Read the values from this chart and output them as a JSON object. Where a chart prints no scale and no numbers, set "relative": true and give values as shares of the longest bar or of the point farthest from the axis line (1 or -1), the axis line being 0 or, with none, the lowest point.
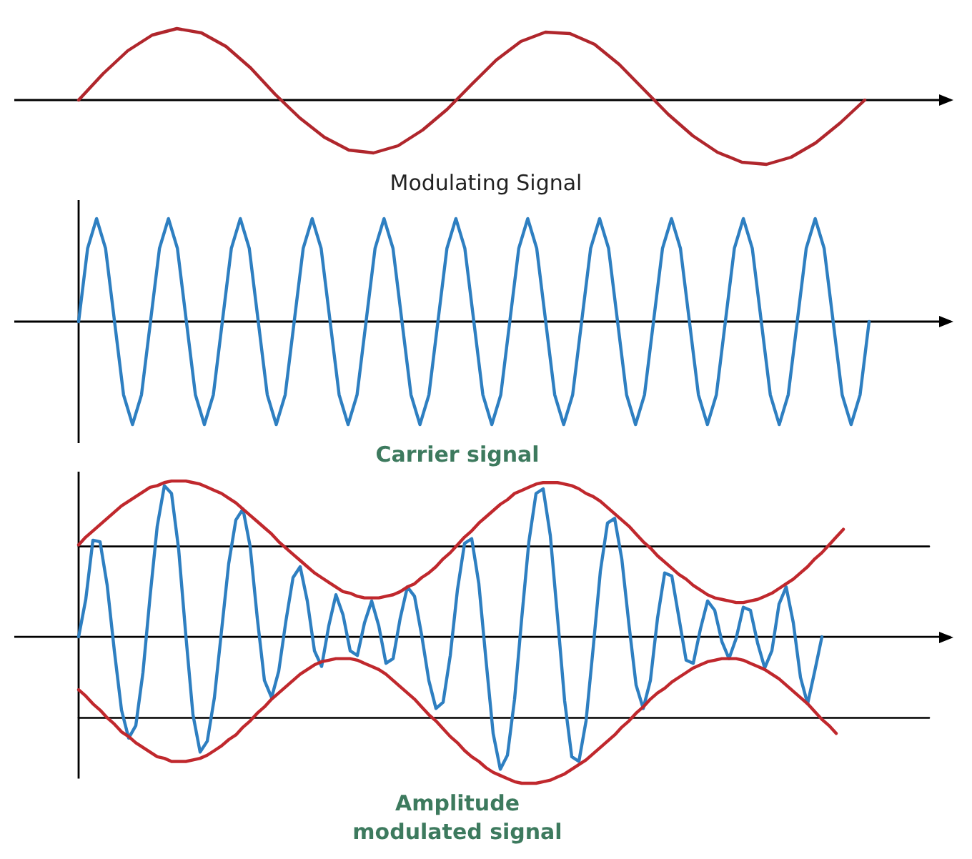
{
  "chart_data": [
    {
      "type": "line",
      "title": "Modulating Signal",
      "relative": true,
      "categories": [
        null,
        null,
        null,
        null,
        null,
        null,
        null,
        null,
        null,
        null,
        null,
        null,
        null,
        null,
        null,
        null,
        null,
        null,
        null,
        null,
        null,
        null,
        null,
        null,
        null,
        null,
        null,
        null,
        null,
        null,
        null,
        null,
        null
      ],
      "series": [
        {
          "color": "#b0262c",
          "values": [
            0,
            0.37,
            0.69,
            0.91,
            1,
            0.94,
            0.75,
            0.45,
            0.08,
            -0.25,
            -0.52,
            -0.7,
            -0.74,
            -0.64,
            -0.42,
            -0.13,
            0.22,
            0.56,
            0.82,
            0.95,
            0.93,
            0.78,
            0.5,
            0.15,
            -0.2,
            -0.5,
            -0.73,
            -0.87,
            -0.9,
            -0.8,
            -0.6,
            -0.32,
            0
          ]
        }
      ]
    },
    {
      "type": "line",
      "title": "Carrier signal",
      "relative": true,
      "categories": [
        null,
        null,
        null,
        null,
        null,
        null,
        null,
        null,
        null,
        null,
        null,
        null,
        null,
        null,
        null,
        null,
        null,
        null,
        null,
        null,
        null,
        null,
        null,
        null,
        null,
        null,
        null,
        null,
        null,
        null,
        null,
        null,
        null,
        null,
        null,
        null,
        null,
        null,
        null,
        null,
        null,
        null,
        null,
        null,
        null,
        null,
        null,
        null,
        null,
        null,
        null,
        null,
        null,
        null,
        null,
        null,
        null,
        null,
        null,
        null,
        null,
        null,
        null,
        null,
        null,
        null,
        null,
        null,
        null,
        null,
        null,
        null,
        null,
        null,
        null,
        null,
        null,
        null,
        null,
        null,
        null,
        null,
        null,
        null,
        null,
        null,
        null,
        null,
        null
      ],
      "series": [
        {
          "color": "#2e7fc1",
          "values": [
            0,
            0.71,
            1,
            0.71,
            0,
            -0.71,
            -1,
            -0.71,
            0,
            0.71,
            1,
            0.71,
            0,
            -0.71,
            -1,
            -0.71,
            0,
            0.71,
            1,
            0.71,
            0,
            -0.71,
            -1,
            -0.71,
            0,
            0.71,
            1,
            0.71,
            0,
            -0.71,
            -1,
            -0.71,
            0,
            0.71,
            1,
            0.71,
            0,
            -0.71,
            -1,
            -0.71,
            0,
            0.71,
            1,
            0.71,
            0,
            -0.71,
            -1,
            -0.71,
            0,
            0.71,
            1,
            0.71,
            0,
            -0.71,
            -1,
            -0.71,
            0,
            0.71,
            1,
            0.71,
            0,
            -0.71,
            -1,
            -0.71,
            0,
            0.71,
            1,
            0.71,
            0,
            -0.71,
            -1,
            -0.71,
            0,
            0.71,
            1,
            0.71,
            0,
            -0.71,
            -1,
            -0.71,
            0,
            0.71,
            1,
            0.71,
            0,
            -0.71,
            -1,
            -0.71,
            0
          ]
        }
      ]
    },
    {
      "type": "line",
      "title": "Amplitude modulated signal",
      "relative": true,
      "categories": [
        null,
        null,
        null,
        null,
        null,
        null,
        null,
        null,
        null,
        null,
        null,
        null,
        null,
        null,
        null,
        null,
        null,
        null,
        null,
        null,
        null,
        null,
        null,
        null,
        null,
        null,
        null,
        null,
        null,
        null,
        null,
        null,
        null,
        null,
        null,
        null,
        null,
        null,
        null,
        null,
        null,
        null,
        null,
        null,
        null,
        null,
        null,
        null,
        null,
        null,
        null,
        null,
        null,
        null,
        null,
        null,
        null,
        null,
        null,
        null,
        null,
        null,
        null,
        null,
        null,
        null,
        null,
        null,
        null,
        null,
        null,
        null,
        null,
        null,
        null,
        null,
        null,
        null,
        null,
        null,
        null,
        null,
        null,
        null,
        null,
        null,
        null,
        null,
        null,
        null,
        null,
        null,
        null,
        null,
        null,
        null,
        null,
        null,
        null,
        null,
        null,
        null,
        null,
        null,
        null,
        null,
        null,
        null,
        null,
        null,
        null,
        null,
        null,
        null,
        null,
        null,
        null,
        null,
        null,
        null,
        null
      ],
      "series": [
        {
          "color": "#000000",
          "values": [
            0.58,
            0.58,
            0.58,
            0.58,
            0.58,
            0.58,
            0.58,
            0.58,
            0.58,
            0.58,
            0.58,
            0.58,
            0.58,
            0.58,
            0.58,
            0.58,
            0.58,
            0.58,
            0.58,
            0.58,
            0.58,
            0.58,
            0.58,
            0.58,
            0.58,
            0.58,
            0.58,
            0.58,
            0.58,
            0.58,
            0.58,
            0.58,
            0.58,
            0.58,
            0.58,
            0.58,
            0.58,
            0.58,
            0.58,
            0.58,
            0.58,
            0.58,
            0.58,
            0.58,
            0.58,
            0.58,
            0.58,
            0.58,
            0.58,
            0.58,
            0.58,
            0.58,
            0.58,
            0.58,
            0.58,
            0.58,
            0.58,
            0.58,
            0.58,
            0.58,
            0.58,
            0.58,
            0.58,
            0.58,
            0.58,
            0.58,
            0.58,
            0.58,
            0.58,
            0.58,
            0.58,
            0.58,
            0.58,
            0.58,
            0.58,
            0.58,
            0.58,
            0.58,
            0.58,
            0.58,
            0.58,
            0.58,
            0.58,
            0.58,
            0.58,
            0.58,
            0.58,
            0.58,
            0.58,
            0.58,
            0.58,
            0.58,
            0.58,
            0.58,
            0.58,
            0.58,
            0.58,
            0.58,
            0.58,
            0.58,
            0.58,
            0.58,
            0.58,
            0.58,
            0.58,
            0.58,
            0.58,
            0.58,
            0.58,
            0.58,
            0.58,
            0.58,
            0.58,
            0.58,
            0.58,
            0.58,
            0.58,
            0.58,
            0.58,
            0.58,
            null
          ]
        },
        {
          "color": "#000000",
          "values": [
            -0.52,
            -0.52,
            -0.52,
            -0.52,
            -0.52,
            -0.52,
            -0.52,
            -0.52,
            -0.52,
            -0.52,
            -0.52,
            -0.52,
            -0.52,
            -0.52,
            -0.52,
            -0.52,
            -0.52,
            -0.52,
            -0.52,
            -0.52,
            -0.52,
            -0.52,
            -0.52,
            -0.52,
            -0.52,
            -0.52,
            -0.52,
            -0.52,
            -0.52,
            -0.52,
            -0.52,
            -0.52,
            -0.52,
            -0.52,
            -0.52,
            -0.52,
            -0.52,
            -0.52,
            -0.52,
            -0.52,
            -0.52,
            -0.52,
            -0.52,
            -0.52,
            -0.52,
            -0.52,
            -0.52,
            -0.52,
            -0.52,
            -0.52,
            -0.52,
            -0.52,
            -0.52,
            -0.52,
            -0.52,
            -0.52,
            -0.52,
            -0.52,
            -0.52,
            -0.52,
            -0.52,
            -0.52,
            -0.52,
            -0.52,
            -0.52,
            -0.52,
            -0.52,
            -0.52,
            -0.52,
            -0.52,
            -0.52,
            -0.52,
            -0.52,
            -0.52,
            -0.52,
            -0.52,
            -0.52,
            -0.52,
            -0.52,
            -0.52,
            -0.52,
            -0.52,
            -0.52,
            -0.52,
            -0.52,
            -0.52,
            -0.52,
            -0.52,
            -0.52,
            -0.52,
            -0.52,
            -0.52,
            -0.52,
            -0.52,
            -0.52,
            -0.52,
            -0.52,
            -0.52,
            -0.52,
            -0.52,
            -0.52,
            -0.52,
            -0.52,
            -0.52,
            -0.52,
            -0.52,
            -0.52,
            -0.52,
            -0.52,
            -0.52,
            -0.52,
            -0.52,
            -0.52,
            -0.52,
            -0.52,
            -0.52,
            -0.52,
            -0.52,
            -0.52,
            -0.52,
            null
          ]
        },
        {
          "color": "#2e7fc1",
          "values": [
            0,
            0.24,
            0.62,
            0.61,
            0.33,
            -0.09,
            -0.47,
            -0.65,
            -0.57,
            -0.23,
            0.26,
            0.71,
            0.97,
            0.92,
            0.56,
            0.01,
            -0.5,
            -0.74,
            -0.67,
            -0.39,
            0.04,
            0.47,
            0.75,
            0.82,
            0.58,
            0.12,
            -0.28,
            -0.39,
            -0.22,
            0.1,
            0.38,
            0.45,
            0.23,
            -0.09,
            -0.19,
            0.07,
            0.27,
            0.14,
            -0.09,
            -0.12,
            0.09,
            0.23,
            0.07,
            -0.17,
            -0.14,
            0.12,
            0.32,
            0.26,
            0.01,
            -0.28,
            -0.46,
            -0.42,
            -0.12,
            0.3,
            0.6,
            0.63,
            0.34,
            -0.15,
            -0.62,
            -0.85,
            -0.76,
            -0.4,
            0.12,
            0.61,
            0.92,
            0.95,
            0.65,
            0.13,
            -0.41,
            -0.77,
            -0.8,
            -0.54,
            -0.07,
            0.42,
            0.73,
            0.76,
            0.5,
            0.08,
            -0.31,
            -0.46,
            -0.28,
            0.12,
            0.41,
            0.39,
            0.12,
            -0.15,
            -0.17,
            0.05,
            0.23,
            0.17,
            -0.03,
            -0.14,
            -0.01,
            0.19,
            0.17,
            -0.04,
            -0.2,
            -0.09,
            0.21,
            0.32,
            0.09,
            -0.26,
            -0.43,
            -0.22,
            0,
            null,
            null,
            null,
            null,
            null,
            null,
            null,
            null,
            null,
            null,
            null,
            null,
            null,
            null,
            null,
            null
          ]
        },
        {
          "color": "#c0282d",
          "values": [
            0.59,
            0.64,
            0.68,
            0.72,
            0.76,
            0.8,
            0.84,
            0.87,
            0.9,
            0.93,
            0.96,
            0.97,
            0.99,
            1,
            1,
            1,
            0.99,
            0.98,
            0.96,
            0.94,
            0.92,
            0.89,
            0.86,
            0.82,
            0.78,
            0.74,
            0.7,
            0.66,
            0.61,
            0.57,
            0.53,
            0.49,
            0.45,
            0.41,
            0.38,
            0.35,
            0.32,
            0.29,
            0.28,
            0.26,
            0.25,
            0.25,
            0.25,
            0.26,
            0.27,
            0.29,
            0.32,
            0.34,
            0.38,
            0.41,
            0.45,
            0.5,
            0.54,
            0.59,
            0.64,
            0.68,
            0.73,
            0.77,
            0.81,
            0.85,
            0.88,
            0.92,
            0.94,
            0.96,
            0.98,
            0.99,
            0.99,
            0.99,
            0.98,
            0.97,
            0.95,
            0.92,
            0.9,
            0.87,
            0.83,
            0.79,
            0.75,
            0.71,
            0.66,
            0.61,
            0.57,
            0.52,
            0.48,
            0.44,
            0.4,
            0.37,
            0.33,
            0.3,
            0.27,
            0.25,
            0.24,
            0.23,
            0.22,
            0.22,
            0.23,
            0.24,
            0.26,
            0.28,
            0.31,
            0.34,
            0.37,
            0.41,
            0.45,
            0.5,
            0.54,
            0.59,
            0.64,
            0.69,
            null,
            null,
            null,
            null,
            null,
            null,
            null,
            null,
            null,
            null,
            null,
            null,
            null
          ]
        },
        {
          "color": "#c0282d",
          "values": [
            -0.34,
            -0.38,
            -0.43,
            -0.47,
            -0.52,
            -0.56,
            -0.61,
            -0.64,
            -0.68,
            -0.71,
            -0.74,
            -0.77,
            -0.78,
            -0.8,
            -0.8,
            -0.8,
            -0.79,
            -0.78,
            -0.76,
            -0.73,
            -0.7,
            -0.66,
            -0.63,
            -0.58,
            -0.54,
            -0.49,
            -0.45,
            -0.4,
            -0.36,
            -0.32,
            -0.28,
            -0.24,
            -0.21,
            -0.18,
            -0.16,
            -0.15,
            -0.14,
            -0.14,
            -0.14,
            -0.15,
            -0.17,
            -0.19,
            -0.21,
            -0.24,
            -0.28,
            -0.32,
            -0.36,
            -0.4,
            -0.45,
            -0.5,
            -0.54,
            -0.59,
            -0.64,
            -0.68,
            -0.73,
            -0.77,
            -0.8,
            -0.84,
            -0.87,
            -0.89,
            -0.91,
            -0.93,
            -0.94,
            -0.94,
            -0.94,
            -0.93,
            -0.92,
            -0.9,
            -0.88,
            -0.85,
            -0.82,
            -0.79,
            -0.75,
            -0.71,
            -0.67,
            -0.63,
            -0.58,
            -0.54,
            -0.49,
            -0.45,
            -0.4,
            -0.36,
            -0.33,
            -0.29,
            -0.26,
            -0.23,
            -0.2,
            -0.18,
            -0.16,
            -0.15,
            -0.14,
            -0.14,
            -0.14,
            -0.15,
            -0.17,
            -0.19,
            -0.21,
            -0.24,
            -0.27,
            -0.31,
            -0.35,
            -0.39,
            -0.43,
            -0.48,
            -0.53,
            -0.57,
            -0.62,
            null,
            null,
            null,
            null,
            null,
            null,
            null,
            null,
            null,
            null,
            null,
            null,
            null,
            null
          ]
        }
      ]
    }
  ]
}
